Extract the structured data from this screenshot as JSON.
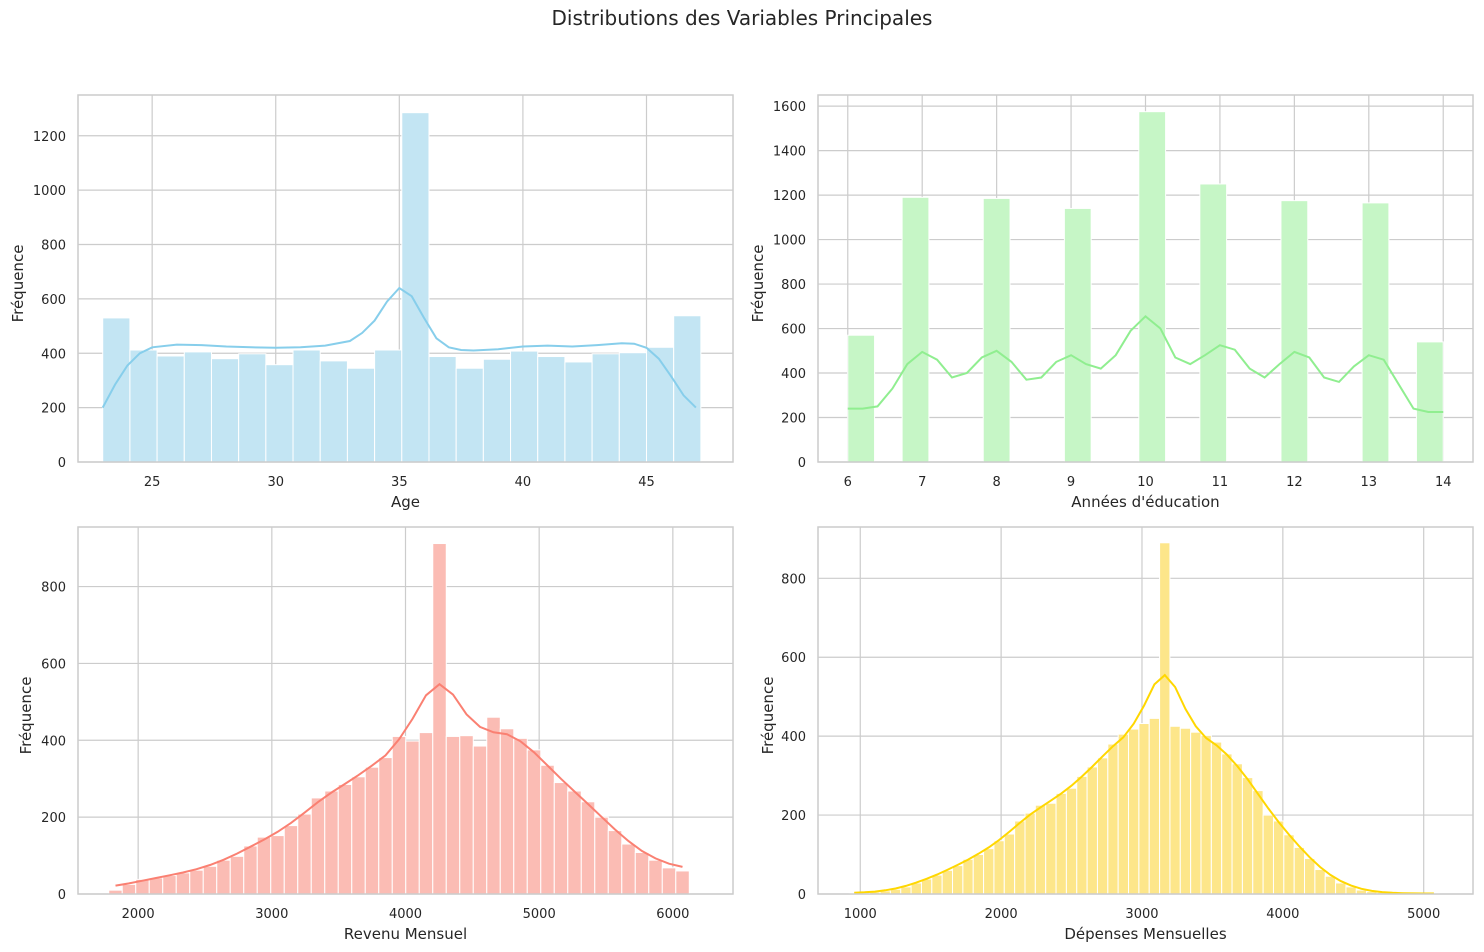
{
  "suptitle": "Distributions des Variables Principales",
  "chart_data": [
    {
      "type": "bar",
      "subtype": "histogram-with-kde",
      "xlabel": "Age",
      "ylabel": "Fréquence",
      "color": "#87CEEB",
      "bar_color": "#c3e5f3",
      "xlim": [
        22,
        48.5
      ],
      "ylim": [
        0,
        1350
      ],
      "xticks": [
        25,
        30,
        35,
        40,
        45
      ],
      "yticks": [
        0,
        200,
        400,
        600,
        800,
        1000,
        1200
      ],
      "grid": true,
      "bins": [
        {
          "x0": 23.0,
          "x1": 24.1,
          "value": 530
        },
        {
          "x0": 24.1,
          "x1": 25.2,
          "value": 412
        },
        {
          "x0": 25.2,
          "x1": 26.3,
          "value": 390
        },
        {
          "x0": 26.3,
          "x1": 27.4,
          "value": 405
        },
        {
          "x0": 27.4,
          "x1": 28.5,
          "value": 380
        },
        {
          "x0": 28.5,
          "x1": 29.6,
          "value": 398
        },
        {
          "x0": 29.6,
          "x1": 30.7,
          "value": 358
        },
        {
          "x0": 30.7,
          "x1": 31.8,
          "value": 412
        },
        {
          "x0": 31.8,
          "x1": 32.9,
          "value": 372
        },
        {
          "x0": 32.9,
          "x1": 34.0,
          "value": 345
        },
        {
          "x0": 34.0,
          "x1": 35.1,
          "value": 412
        },
        {
          "x0": 35.1,
          "x1": 36.2,
          "value": 1285
        },
        {
          "x0": 36.2,
          "x1": 37.3,
          "value": 388
        },
        {
          "x0": 37.3,
          "x1": 38.4,
          "value": 345
        },
        {
          "x0": 38.4,
          "x1": 39.5,
          "value": 378
        },
        {
          "x0": 39.5,
          "x1": 40.6,
          "value": 408
        },
        {
          "x0": 40.6,
          "x1": 41.7,
          "value": 388
        },
        {
          "x0": 41.7,
          "x1": 42.8,
          "value": 368
        },
        {
          "x0": 42.8,
          "x1": 43.9,
          "value": 398
        },
        {
          "x0": 43.9,
          "x1": 45.0,
          "value": 402
        },
        {
          "x0": 45.0,
          "x1": 46.1,
          "value": 422
        },
        {
          "x0": 46.1,
          "x1": 47.2,
          "value": 538
        }
      ],
      "kde": {
        "x": [
          23,
          23.5,
          24,
          24.5,
          25,
          26,
          27,
          28,
          29,
          30,
          31,
          32,
          33,
          33.5,
          34,
          34.5,
          35,
          35.5,
          36,
          36.5,
          37,
          37.5,
          38,
          39,
          40,
          41,
          42,
          43,
          44,
          44.5,
          45,
          45.5,
          46,
          46.5,
          47
        ],
        "y": [
          200,
          285,
          355,
          400,
          422,
          432,
          430,
          425,
          422,
          420,
          422,
          428,
          445,
          475,
          520,
          590,
          640,
          610,
          530,
          455,
          422,
          412,
          410,
          415,
          425,
          428,
          425,
          430,
          437,
          435,
          420,
          380,
          315,
          245,
          200
        ]
      }
    },
    {
      "type": "bar",
      "subtype": "histogram-with-kde",
      "xlabel": "Années d'éducation",
      "ylabel": "Fréquence",
      "color": "#90EE90",
      "bar_color": "#c6f6c6",
      "xlim": [
        5.6,
        14.4
      ],
      "ylim": [
        0,
        1650
      ],
      "xticks": [
        6,
        7,
        8,
        9,
        10,
        11,
        12,
        13,
        14
      ],
      "yticks": [
        0,
        200,
        400,
        600,
        800,
        1000,
        1200,
        1400,
        1600
      ],
      "grid": true,
      "bins": [
        {
          "x0": 6.0,
          "x1": 6.36,
          "value": 570
        },
        {
          "x0": 6.73,
          "x1": 7.09,
          "value": 1190
        },
        {
          "x0": 7.82,
          "x1": 8.18,
          "value": 1185
        },
        {
          "x0": 8.91,
          "x1": 9.27,
          "value": 1140
        },
        {
          "x0": 9.91,
          "x1": 10.27,
          "value": 1575
        },
        {
          "x0": 10.73,
          "x1": 11.09,
          "value": 1250
        },
        {
          "x0": 11.82,
          "x1": 12.18,
          "value": 1175
        },
        {
          "x0": 12.91,
          "x1": 13.27,
          "value": 1165
        },
        {
          "x0": 13.64,
          "x1": 14.0,
          "value": 540
        }
      ],
      "kde": {
        "x": [
          6,
          6.2,
          6.4,
          6.6,
          6.8,
          7,
          7.2,
          7.4,
          7.6,
          7.8,
          8,
          8.2,
          8.4,
          8.6,
          8.8,
          9,
          9.2,
          9.4,
          9.6,
          9.8,
          10,
          10.2,
          10.4,
          10.6,
          10.8,
          11,
          11.2,
          11.4,
          11.6,
          11.8,
          12,
          12.2,
          12.4,
          12.6,
          12.8,
          13,
          13.2,
          13.4,
          13.6,
          13.8,
          14
        ],
        "y": [
          240,
          240,
          250,
          330,
          440,
          495,
          460,
          380,
          400,
          470,
          500,
          450,
          370,
          380,
          450,
          480,
          440,
          420,
          480,
          590,
          655,
          600,
          470,
          440,
          480,
          525,
          505,
          420,
          380,
          440,
          495,
          470,
          380,
          360,
          430,
          480,
          460,
          350,
          240,
          225,
          225
        ]
      }
    },
    {
      "type": "bar",
      "subtype": "histogram-with-kde",
      "xlabel": "Revenu Mensuel",
      "ylabel": "Fréquence",
      "color": "#FA8072",
      "bar_color": "#fbbcb4",
      "xlim": [
        1550,
        6450
      ],
      "ylim": [
        0,
        955
      ],
      "xticks": [
        2000,
        3000,
        4000,
        5000,
        6000
      ],
      "yticks": [
        0,
        200,
        400,
        600,
        800
      ],
      "grid": true,
      "bins_start": 1780,
      "bin_width": 101,
      "values": [
        10,
        25,
        38,
        42,
        48,
        55,
        62,
        72,
        88,
        98,
        125,
        148,
        152,
        178,
        208,
        250,
        268,
        285,
        305,
        330,
        355,
        410,
        398,
        420,
        912,
        410,
        412,
        385,
        460,
        430,
        405,
        375,
        335,
        290,
        268,
        240,
        200,
        165,
        130,
        108,
        88,
        68,
        60
      ]
    },
    {
      "type": "bar",
      "subtype": "histogram-with-kde",
      "xlabel": "Dépenses Mensuelles",
      "ylabel": "Fréquence",
      "color": "#FFD700",
      "bar_color": "#fde68a",
      "xlim": [
        700,
        5350
      ],
      "ylim": [
        0,
        930
      ],
      "xticks": [
        1000,
        2000,
        3000,
        4000,
        5000
      ],
      "yticks": [
        0,
        200,
        400,
        600,
        800
      ],
      "grid": true,
      "bins_start": 920,
      "bin_width": 73.5,
      "values": [
        2,
        3,
        5,
        8,
        12,
        18,
        28,
        38,
        48,
        60,
        72,
        88,
        100,
        115,
        135,
        152,
        185,
        205,
        225,
        230,
        255,
        268,
        298,
        322,
        345,
        380,
        405,
        418,
        432,
        445,
        890,
        425,
        420,
        410,
        402,
        385,
        355,
        330,
        295,
        262,
        200,
        185,
        150,
        118,
        90,
        62,
        45,
        28,
        18,
        10,
        6,
        4,
        2,
        1,
        2,
        1,
        1
      ]
    }
  ]
}
